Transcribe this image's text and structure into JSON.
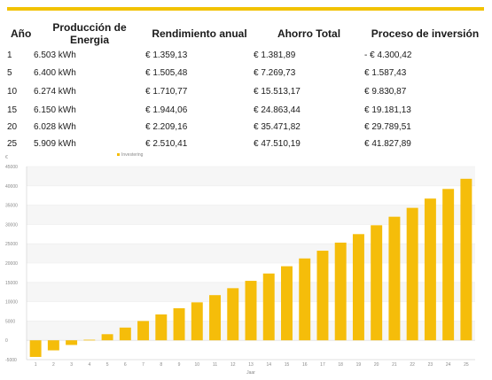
{
  "table": {
    "headers": [
      "Año",
      "Producción de Energia",
      "Rendimiento anual",
      "Ahorro Total",
      "Proceso de inversión"
    ],
    "rows": [
      [
        "1",
        "6.503 kWh",
        "€ 1.359,13",
        "€ 1.381,89",
        "- € 4.300,42"
      ],
      [
        "5",
        "6.400 kWh",
        "€ 1.505,48",
        "€ 7.269,73",
        "€ 1.587,43"
      ],
      [
        "10",
        "6.274 kWh",
        "€ 1.710,77",
        "€ 15.513,17",
        "€ 9.830,87"
      ],
      [
        "15",
        "6.150 kWh",
        "€ 1.944,06",
        "€ 24.863,44",
        "€ 19.181,13"
      ],
      [
        "20",
        "6.028 kWh",
        "€ 2.209,16",
        "€ 35.471,82",
        "€ 29.789,51"
      ],
      [
        "25",
        "5.909 kWh",
        "€ 2.510,41",
        "€ 47.510,19",
        "€ 41.827,89"
      ]
    ]
  },
  "colors": {
    "accent": "#f2c200",
    "bar": "#f5bd0a"
  },
  "chart_data": {
    "type": "bar",
    "ylabel": "€",
    "xlabel": "Jaar",
    "legend": "top-left",
    "series": [
      {
        "name": "Investering",
        "values": [
          -4300,
          -2600,
          -1200,
          150,
          1587,
          3300,
          5000,
          6700,
          8300,
          9831,
          11700,
          13500,
          15400,
          17300,
          19181,
          21200,
          23200,
          25300,
          27500,
          29790,
          32000,
          34300,
          36700,
          39200,
          41828
        ]
      }
    ],
    "categories": [
      "1",
      "2",
      "3",
      "4",
      "5",
      "6",
      "7",
      "8",
      "9",
      "10",
      "11",
      "12",
      "13",
      "14",
      "15",
      "16",
      "17",
      "18",
      "19",
      "20",
      "21",
      "22",
      "23",
      "24",
      "25"
    ],
    "yticks": [
      -5000,
      0,
      5000,
      10000,
      15000,
      20000,
      25000,
      30000,
      35000,
      40000,
      45000
    ],
    "ylim": [
      -5000,
      45000
    ],
    "grid": true
  }
}
